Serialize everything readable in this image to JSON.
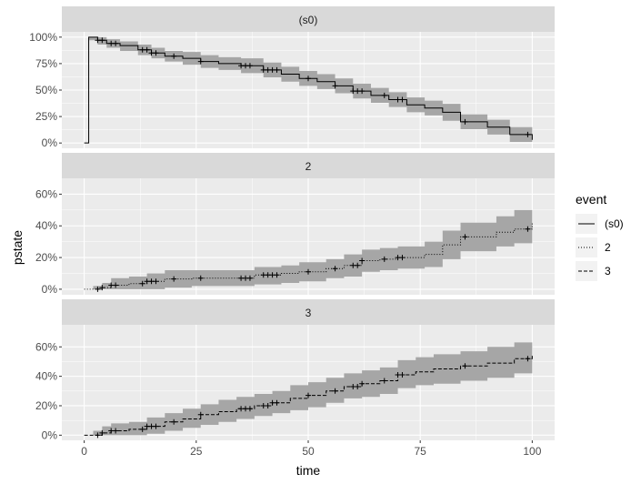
{
  "chart_data": {
    "type": "line",
    "subtype": "faceted step curves with confidence bands",
    "xlabel": "time",
    "ylabel": "pstate",
    "xlim": [
      -5,
      105
    ],
    "x_ticks": [
      0,
      25,
      50,
      75,
      100
    ],
    "x_tick_labels": [
      "0",
      "25",
      "50",
      "75",
      "100"
    ],
    "legend": {
      "title": "event",
      "position": "right",
      "entries": [
        {
          "label": "(s0)",
          "linetype": "solid"
        },
        {
          "label": "2",
          "linetype": "dotted"
        },
        {
          "label": "3",
          "linetype": "dashed"
        }
      ]
    },
    "colors": {
      "panel_bg": "#ebebeb",
      "strip_bg": "#d9d9d9",
      "grid": "#ffffff",
      "band": "#a6a6a6",
      "line": "#000000"
    },
    "panels": [
      {
        "strip": "(s0)",
        "linetype": "solid",
        "ylim": [
          -0.05,
          1.05
        ],
        "y_ticks": [
          0,
          0.25,
          0.5,
          0.75,
          1.0
        ],
        "y_tick_labels": [
          "0%",
          "25%",
          "50%",
          "75%",
          "100%"
        ],
        "series": [
          [
            0,
            0
          ],
          [
            1,
            0
          ],
          [
            1,
            1.0
          ],
          [
            3,
            0.97
          ],
          [
            5,
            0.94
          ],
          [
            8,
            0.92
          ],
          [
            12,
            0.88
          ],
          [
            15,
            0.85
          ],
          [
            18,
            0.82
          ],
          [
            22,
            0.8
          ],
          [
            26,
            0.77
          ],
          [
            30,
            0.75
          ],
          [
            35,
            0.73
          ],
          [
            40,
            0.69
          ],
          [
            44,
            0.65
          ],
          [
            48,
            0.61
          ],
          [
            52,
            0.58
          ],
          [
            56,
            0.54
          ],
          [
            60,
            0.49
          ],
          [
            64,
            0.45
          ],
          [
            68,
            0.41
          ],
          [
            72,
            0.36
          ],
          [
            76,
            0.33
          ],
          [
            80,
            0.29
          ],
          [
            84,
            0.2
          ],
          [
            90,
            0.15
          ],
          [
            95,
            0.08
          ],
          [
            100,
            0.03
          ]
        ],
        "lower": [
          [
            1,
            0.97
          ],
          [
            3,
            0.93
          ],
          [
            5,
            0.9
          ],
          [
            8,
            0.87
          ],
          [
            12,
            0.83
          ],
          [
            15,
            0.8
          ],
          [
            18,
            0.77
          ],
          [
            22,
            0.74
          ],
          [
            26,
            0.71
          ],
          [
            30,
            0.69
          ],
          [
            35,
            0.66
          ],
          [
            40,
            0.62
          ],
          [
            44,
            0.58
          ],
          [
            48,
            0.54
          ],
          [
            52,
            0.51
          ],
          [
            56,
            0.47
          ],
          [
            60,
            0.42
          ],
          [
            64,
            0.38
          ],
          [
            68,
            0.34
          ],
          [
            72,
            0.29
          ],
          [
            76,
            0.26
          ],
          [
            80,
            0.21
          ],
          [
            84,
            0.13
          ],
          [
            90,
            0.08
          ],
          [
            95,
            0.01
          ],
          [
            100,
            0.0
          ]
        ],
        "upper": [
          [
            1,
            1.0
          ],
          [
            3,
            1.0
          ],
          [
            5,
            0.98
          ],
          [
            8,
            0.96
          ],
          [
            12,
            0.93
          ],
          [
            15,
            0.9
          ],
          [
            18,
            0.87
          ],
          [
            22,
            0.86
          ],
          [
            26,
            0.83
          ],
          [
            30,
            0.81
          ],
          [
            35,
            0.8
          ],
          [
            40,
            0.76
          ],
          [
            44,
            0.72
          ],
          [
            48,
            0.68
          ],
          [
            52,
            0.65
          ],
          [
            56,
            0.61
          ],
          [
            60,
            0.56
          ],
          [
            64,
            0.52
          ],
          [
            68,
            0.48
          ],
          [
            72,
            0.43
          ],
          [
            76,
            0.4
          ],
          [
            80,
            0.37
          ],
          [
            84,
            0.27
          ],
          [
            90,
            0.22
          ],
          [
            95,
            0.15
          ],
          [
            100,
            0.09
          ]
        ],
        "censor_times": [
          3,
          4,
          6,
          7,
          13,
          14,
          15,
          16,
          20,
          26,
          35,
          36,
          37,
          40,
          41,
          42,
          43,
          50,
          56,
          60,
          61,
          62,
          67,
          70,
          71,
          85,
          99
        ]
      },
      {
        "strip": "2",
        "linetype": "dotted",
        "ylim": [
          -0.035,
          0.7
        ],
        "y_ticks": [
          0,
          0.2,
          0.4,
          0.6
        ],
        "y_tick_labels": [
          "0%",
          "20%",
          "40%",
          "60%"
        ],
        "series": [
          [
            0,
            0
          ],
          [
            2,
            0
          ],
          [
            4,
            0.01
          ],
          [
            6,
            0.025
          ],
          [
            10,
            0.035
          ],
          [
            14,
            0.05
          ],
          [
            18,
            0.065
          ],
          [
            24,
            0.07
          ],
          [
            30,
            0.07
          ],
          [
            36,
            0.07
          ],
          [
            38,
            0.09
          ],
          [
            44,
            0.1
          ],
          [
            48,
            0.11
          ],
          [
            54,
            0.13
          ],
          [
            58,
            0.15
          ],
          [
            62,
            0.18
          ],
          [
            66,
            0.19
          ],
          [
            70,
            0.2
          ],
          [
            76,
            0.22
          ],
          [
            80,
            0.28
          ],
          [
            84,
            0.33
          ],
          [
            92,
            0.36
          ],
          [
            96,
            0.38
          ],
          [
            100,
            0.42
          ]
        ],
        "lower": [
          [
            2,
            0
          ],
          [
            4,
            0
          ],
          [
            6,
            0
          ],
          [
            10,
            0
          ],
          [
            14,
            0
          ],
          [
            18,
            0.01
          ],
          [
            24,
            0.02
          ],
          [
            30,
            0.02
          ],
          [
            36,
            0.02
          ],
          [
            38,
            0.03
          ],
          [
            44,
            0.04
          ],
          [
            48,
            0.05
          ],
          [
            54,
            0.07
          ],
          [
            58,
            0.08
          ],
          [
            62,
            0.11
          ],
          [
            66,
            0.12
          ],
          [
            70,
            0.13
          ],
          [
            76,
            0.14
          ],
          [
            80,
            0.19
          ],
          [
            84,
            0.24
          ],
          [
            92,
            0.27
          ],
          [
            96,
            0.29
          ],
          [
            100,
            0.31
          ]
        ],
        "upper": [
          [
            2,
            0.02
          ],
          [
            4,
            0.04
          ],
          [
            6,
            0.07
          ],
          [
            10,
            0.08
          ],
          [
            14,
            0.1
          ],
          [
            18,
            0.12
          ],
          [
            24,
            0.12
          ],
          [
            30,
            0.12
          ],
          [
            36,
            0.12
          ],
          [
            38,
            0.14
          ],
          [
            44,
            0.15
          ],
          [
            48,
            0.17
          ],
          [
            54,
            0.19
          ],
          [
            58,
            0.22
          ],
          [
            62,
            0.25
          ],
          [
            66,
            0.26
          ],
          [
            70,
            0.27
          ],
          [
            76,
            0.3
          ],
          [
            80,
            0.37
          ],
          [
            84,
            0.42
          ],
          [
            92,
            0.46
          ],
          [
            96,
            0.5
          ],
          [
            100,
            0.55
          ]
        ],
        "censor_times": [
          3,
          4,
          6,
          7,
          13,
          14,
          15,
          16,
          20,
          26,
          35,
          36,
          37,
          40,
          41,
          42,
          43,
          50,
          56,
          60,
          61,
          62,
          67,
          70,
          71,
          85,
          99
        ]
      },
      {
        "strip": "3",
        "linetype": "dashed",
        "ylim": [
          -0.035,
          0.75
        ],
        "y_ticks": [
          0,
          0.2,
          0.4,
          0.6
        ],
        "y_tick_labels": [
          "0%",
          "20%",
          "40%",
          "60%"
        ],
        "series": [
          [
            0,
            0
          ],
          [
            2,
            0
          ],
          [
            4,
            0.015
          ],
          [
            6,
            0.03
          ],
          [
            10,
            0.04
          ],
          [
            14,
            0.06
          ],
          [
            18,
            0.09
          ],
          [
            22,
            0.11
          ],
          [
            26,
            0.14
          ],
          [
            30,
            0.16
          ],
          [
            34,
            0.18
          ],
          [
            38,
            0.2
          ],
          [
            42,
            0.22
          ],
          [
            46,
            0.25
          ],
          [
            50,
            0.27
          ],
          [
            54,
            0.3
          ],
          [
            58,
            0.33
          ],
          [
            62,
            0.35
          ],
          [
            66,
            0.37
          ],
          [
            70,
            0.41
          ],
          [
            74,
            0.43
          ],
          [
            78,
            0.45
          ],
          [
            84,
            0.47
          ],
          [
            90,
            0.49
          ],
          [
            96,
            0.52
          ],
          [
            100,
            0.55
          ]
        ],
        "lower": [
          [
            2,
            0
          ],
          [
            4,
            0
          ],
          [
            6,
            0
          ],
          [
            10,
            0
          ],
          [
            14,
            0.01
          ],
          [
            18,
            0.03
          ],
          [
            22,
            0.05
          ],
          [
            26,
            0.07
          ],
          [
            30,
            0.09
          ],
          [
            34,
            0.11
          ],
          [
            38,
            0.13
          ],
          [
            42,
            0.15
          ],
          [
            46,
            0.17
          ],
          [
            50,
            0.19
          ],
          [
            54,
            0.22
          ],
          [
            58,
            0.25
          ],
          [
            62,
            0.26
          ],
          [
            66,
            0.28
          ],
          [
            70,
            0.32
          ],
          [
            74,
            0.34
          ],
          [
            78,
            0.35
          ],
          [
            84,
            0.37
          ],
          [
            90,
            0.39
          ],
          [
            96,
            0.42
          ],
          [
            100,
            0.44
          ]
        ],
        "upper": [
          [
            2,
            0.03
          ],
          [
            4,
            0.06
          ],
          [
            6,
            0.08
          ],
          [
            10,
            0.09
          ],
          [
            14,
            0.12
          ],
          [
            18,
            0.15
          ],
          [
            22,
            0.18
          ],
          [
            26,
            0.21
          ],
          [
            30,
            0.24
          ],
          [
            34,
            0.26
          ],
          [
            38,
            0.28
          ],
          [
            42,
            0.3
          ],
          [
            46,
            0.34
          ],
          [
            50,
            0.36
          ],
          [
            54,
            0.39
          ],
          [
            58,
            0.42
          ],
          [
            62,
            0.44
          ],
          [
            66,
            0.46
          ],
          [
            70,
            0.51
          ],
          [
            74,
            0.53
          ],
          [
            78,
            0.55
          ],
          [
            84,
            0.57
          ],
          [
            90,
            0.6
          ],
          [
            96,
            0.63
          ],
          [
            100,
            0.66
          ]
        ],
        "censor_times": [
          3,
          4,
          6,
          7,
          13,
          14,
          15,
          16,
          20,
          26,
          35,
          36,
          37,
          40,
          41,
          42,
          43,
          50,
          56,
          60,
          61,
          62,
          67,
          70,
          71,
          85,
          99
        ]
      }
    ]
  }
}
